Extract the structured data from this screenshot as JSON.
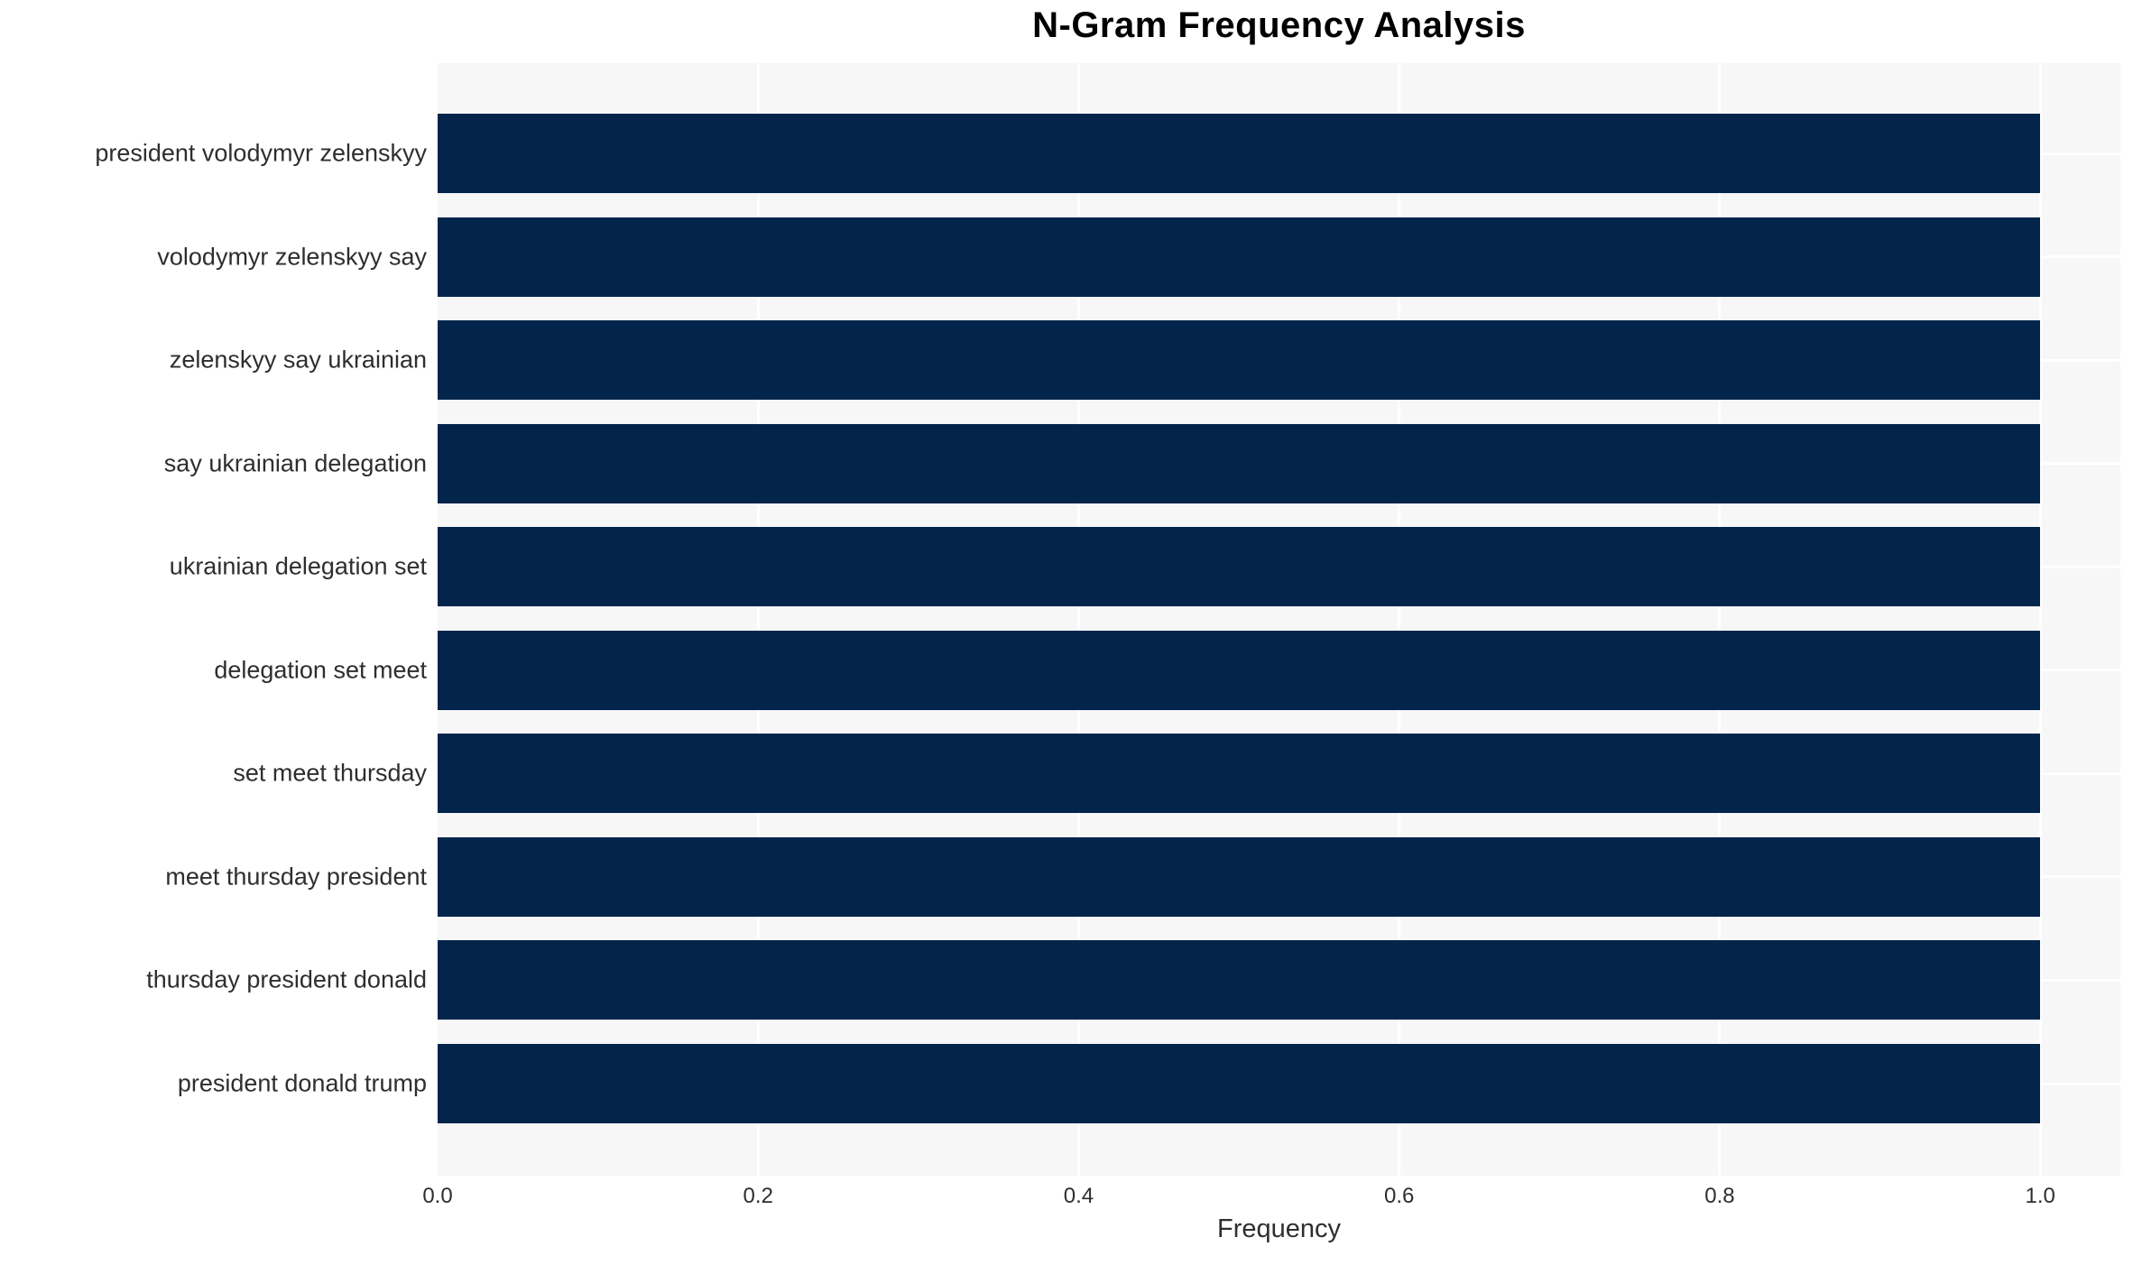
{
  "chart_data": {
    "type": "bar",
    "orientation": "horizontal",
    "title": "N-Gram Frequency Analysis",
    "xlabel": "Frequency",
    "ylabel": "",
    "categories": [
      "president volodymyr zelenskyy",
      "volodymyr zelenskyy say",
      "zelenskyy say ukrainian",
      "say ukrainian delegation",
      "ukrainian delegation set",
      "delegation set meet",
      "set meet thursday",
      "meet thursday president",
      "thursday president donald",
      "president donald trump"
    ],
    "values": [
      1.0,
      1.0,
      1.0,
      1.0,
      1.0,
      1.0,
      1.0,
      1.0,
      1.0,
      1.0
    ],
    "xticks": [
      "0.0",
      "0.2",
      "0.4",
      "0.6",
      "0.8",
      "1.0"
    ],
    "xtick_values": [
      0.0,
      0.2,
      0.4,
      0.6,
      0.8,
      1.0
    ],
    "xlim": [
      0.0,
      1.05
    ],
    "grid": true,
    "legend": false,
    "colors": {
      "bar": "#03254c",
      "plot_background": "#f7f7f8",
      "figure_background": "#ffffff",
      "gridline": "#ffffff",
      "tick_label": "#2e2e2e",
      "title": "#000000"
    }
  }
}
